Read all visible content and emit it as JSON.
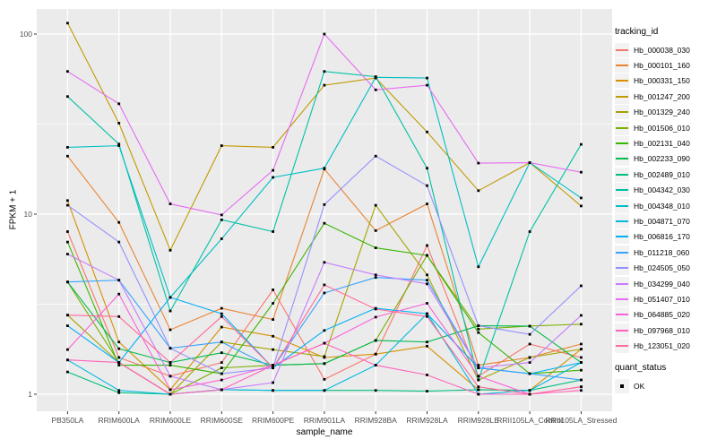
{
  "chart_data": {
    "type": "line",
    "title": "",
    "xlabel": "sample_name",
    "ylabel": "FPKM + 1",
    "y_scale": "log10",
    "ylim": [
      1,
      120
    ],
    "y_ticks": [
      1,
      10,
      100
    ],
    "grid": "ggplot-gray-panel-white-gridlines",
    "legend_position": "right",
    "legend_title": "tracking_id",
    "quant_status_title": "quant_status",
    "quant_status_label": "OK",
    "categories": [
      "PB350LA",
      "RRIM600LA",
      "RRIM600LE",
      "RRIM600SE",
      "RRIM600PE",
      "RRIM901LA",
      "RRIM928BA",
      "RRIM928LA",
      "RRIM928LE",
      "RRII105LA_Control",
      "RRII105LA_Stressed"
    ],
    "series": [
      {
        "name": "Hb_000038_030",
        "color": "#F8766D",
        "values": [
          8.0,
          1.6,
          1.26,
          1.5,
          3.8,
          1.21,
          1.67,
          6.7,
          1.26,
          1.9,
          1.6
        ]
      },
      {
        "name": "Hb_000101_160",
        "color": "#EA8331",
        "values": [
          21,
          9.0,
          2.28,
          3.0,
          2.6,
          17.8,
          8.1,
          11.4,
          1.45,
          1.6,
          1.9
        ]
      },
      {
        "name": "Hb_000331_150",
        "color": "#D89000",
        "values": [
          11.9,
          1.95,
          1.06,
          2.36,
          2.1,
          1.6,
          1.67,
          1.85,
          1.06,
          1.05,
          1.78
        ]
      },
      {
        "name": "Hb_001247_200",
        "color": "#C09B00",
        "values": [
          115,
          32,
          6.3,
          24,
          23.5,
          52,
          57,
          28.6,
          13.5,
          19.3,
          11.1
        ]
      },
      {
        "name": "Hb_001329_240",
        "color": "#A3A500",
        "values": [
          2.75,
          1.5,
          1.0,
          1.95,
          1.77,
          1.62,
          11.2,
          4.6,
          1.2,
          1.6,
          1.78
        ]
      },
      {
        "name": "Hb_001506_010",
        "color": "#7CAE00",
        "values": [
          4.2,
          1.5,
          1.0,
          1.4,
          1.45,
          1.48,
          1.99,
          5.9,
          2.3,
          2.39,
          2.45
        ]
      },
      {
        "name": "Hb_002131_040",
        "color": "#39B600",
        "values": [
          7.0,
          1.45,
          1.45,
          1.3,
          3.2,
          8.9,
          6.5,
          5.9,
          2.2,
          1.3,
          1.36
        ]
      },
      {
        "name": "Hb_002233_090",
        "color": "#00BB4E",
        "values": [
          4.2,
          1.79,
          1.5,
          1.7,
          1.45,
          1.48,
          1.99,
          1.95,
          2.4,
          2.39,
          1.5
        ]
      },
      {
        "name": "Hb_002489_010",
        "color": "#00BF7D",
        "values": [
          1.33,
          1.02,
          1.0,
          1.06,
          1.05,
          1.05,
          1.05,
          1.04,
          1.06,
          1.05,
          1.2
        ]
      },
      {
        "name": "Hb_004342_030",
        "color": "#00C1A3",
        "values": [
          45,
          24.5,
          2.9,
          9.3,
          8.0,
          62,
          58,
          18,
          1.2,
          8.0,
          24.4
        ]
      },
      {
        "name": "Hb_004348_010",
        "color": "#00BFC4",
        "values": [
          23.5,
          24,
          3.45,
          7.3,
          16,
          18,
          57.5,
          57,
          5.1,
          19.3,
          12.3
        ]
      },
      {
        "name": "Hb_004871_070",
        "color": "#00BAE0",
        "values": [
          1.55,
          1.05,
          1.0,
          1.06,
          1.05,
          1.05,
          1.45,
          2.8,
          1.0,
          1.05,
          1.5
        ]
      },
      {
        "name": "Hb_006816_170",
        "color": "#00B0F6",
        "values": [
          2.4,
          1.5,
          3.45,
          2.8,
          1.4,
          2.26,
          3.0,
          2.8,
          1.4,
          1.3,
          1.5
        ]
      },
      {
        "name": "Hb_011218_060",
        "color": "#35A2FF",
        "values": [
          4.2,
          4.3,
          1.8,
          1.95,
          1.4,
          3.65,
          4.45,
          4.3,
          1.4,
          1.3,
          1.2
        ]
      },
      {
        "name": "Hb_024505_050",
        "color": "#9590FF",
        "values": [
          11.2,
          7.0,
          1.8,
          1.3,
          1.4,
          11.3,
          21,
          14.4,
          2.4,
          2.15,
          4.0
        ]
      },
      {
        "name": "Hb_034299_040",
        "color": "#C77CFF",
        "values": [
          6.0,
          4.3,
          1.26,
          1.06,
          1.16,
          5.4,
          4.6,
          4.1,
          1.4,
          1.5,
          2.74
        ]
      },
      {
        "name": "Hb_051407_010",
        "color": "#E76BF3",
        "values": [
          62,
          41,
          11.4,
          9.9,
          17.5,
          100,
          49,
          52,
          19.2,
          19.3,
          17.1
        ]
      },
      {
        "name": "Hb_064885_020",
        "color": "#FA62DB",
        "values": [
          1.77,
          3.6,
          1.06,
          1.2,
          1.45,
          1.92,
          2.68,
          3.2,
          1.26,
          1.0,
          1.1
        ]
      },
      {
        "name": "Hb_097968_010",
        "color": "#FF62BC",
        "values": [
          1.55,
          1.5,
          1.0,
          1.06,
          1.45,
          1.92,
          1.45,
          1.28,
          1.0,
          1.0,
          1.05
        ]
      },
      {
        "name": "Hb_123051_020",
        "color": "#FF6A98",
        "values": [
          2.75,
          2.7,
          1.5,
          2.7,
          1.4,
          4.05,
          2.97,
          2.7,
          1.1,
          1.0,
          1.1
        ]
      }
    ],
    "panel_color": "#EBEBEB",
    "gridline_color": "#FFFFFF",
    "point_color": "#000000"
  }
}
